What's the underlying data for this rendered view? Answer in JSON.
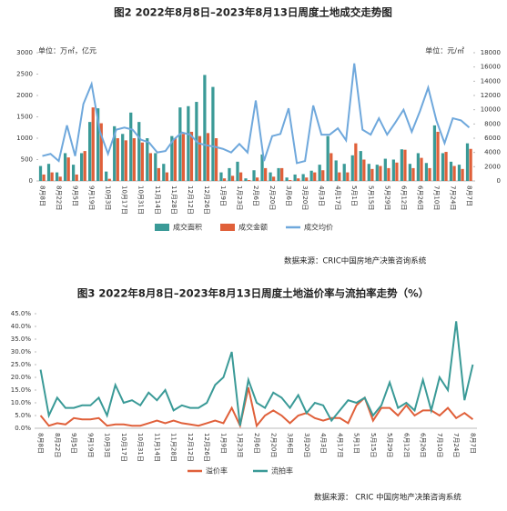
{
  "chart_data": [
    {
      "type": "bar",
      "title": "图2  2022年8月8日–2023年8月13日周度土地成交走势图",
      "y_unit": "单位：万㎡，亿元",
      "y2_unit": "单位：元/㎡",
      "source": "数据来源：CRIC中国房地产决策咨询系统",
      "categories": [
        "8月8日",
        null,
        "8月22日",
        null,
        "9月5日",
        null,
        "9月19日",
        null,
        "10月3日",
        null,
        "10月17日",
        null,
        "10月31日",
        null,
        "11月14日",
        null,
        "11月28日",
        null,
        "12月12日",
        null,
        "12月26日",
        null,
        "1月9日",
        null,
        "1月23日",
        null,
        "2月6日",
        null,
        "2月20日",
        null,
        "3月6日",
        null,
        "3月20日",
        null,
        "4月3日",
        null,
        "4月17日",
        null,
        "5月1日",
        null,
        "5月15日",
        null,
        "5月29日",
        null,
        "6月12日",
        null,
        "6月26日",
        null,
        "7月10日",
        null,
        "7月24日",
        null,
        "8月7日"
      ],
      "series": [
        {
          "name": "成交面积",
          "color": "#3a9a97",
          "values": [
            350,
            400,
            200,
            650,
            380,
            650,
            1380,
            1700,
            220,
            1280,
            1100,
            1600,
            1380,
            1000,
            650,
            400,
            1050,
            1720,
            1750,
            1850,
            2480,
            2200,
            200,
            300,
            450,
            60,
            250,
            620,
            200,
            300,
            80,
            150,
            160,
            240,
            380,
            1050,
            480,
            400,
            600,
            700,
            400,
            380,
            520,
            500,
            740,
            400,
            650,
            420,
            1300,
            650,
            450,
            380,
            880
          ]
        },
        {
          "name": "成交金额",
          "color": "#e0603a",
          "values": [
            150,
            200,
            100,
            550,
            150,
            700,
            1720,
            1350,
            50,
            1000,
            950,
            1000,
            900,
            650,
            300,
            200,
            1000,
            1100,
            1150,
            1050,
            1120,
            1000,
            60,
            120,
            200,
            20,
            80,
            300,
            100,
            300,
            20,
            60,
            80,
            200,
            250,
            650,
            200,
            200,
            880,
            500,
            280,
            350,
            300,
            430,
            730,
            300,
            540,
            300,
            1150,
            680,
            350,
            280,
            750
          ]
        },
        {
          "name": "成交均价",
          "color": "#6fa8dc",
          "type": "line",
          "axis": "y2",
          "values": [
            3500,
            3800,
            2800,
            7800,
            3500,
            10800,
            13600,
            7000,
            3800,
            7200,
            7500,
            7200,
            5800,
            5400,
            4000,
            4200,
            5800,
            6800,
            6500,
            5300,
            5000,
            4800,
            4500,
            4000,
            5200,
            4000,
            11300,
            2800,
            6300,
            6600,
            10200,
            2500,
            2800,
            10600,
            6500,
            6500,
            7400,
            5700,
            16500,
            7200,
            6500,
            8800,
            6500,
            8200,
            10000,
            6900,
            9800,
            13100,
            8500,
            5300,
            8800,
            8500,
            7500
          ]
        }
      ],
      "ylim": [
        0,
        3000
      ],
      "yticks": [
        0,
        500,
        1000,
        1500,
        2000,
        2500,
        3000
      ],
      "y2lim": [
        0,
        18000
      ],
      "y2ticks": [
        0,
        2000,
        4000,
        6000,
        8000,
        10000,
        12000,
        14000,
        16000,
        18000
      ],
      "grid": false
    },
    {
      "type": "line",
      "title": "图3  2022年8月8日–2023年8月13日周度土地溢价率与流拍率走势（%）",
      "source": "数据来源：  CRIC 中国房地产决策咨询系统",
      "categories": [
        "8月8日",
        null,
        "8月22日",
        null,
        "9月5日",
        null,
        "9月19日",
        null,
        "10月3日",
        null,
        "10月17日",
        null,
        "10月31日",
        null,
        "11月14日",
        null,
        "11月28日",
        null,
        "12月12日",
        null,
        "12月26日",
        null,
        "1月9日",
        null,
        "1月23日",
        null,
        "2月6日",
        null,
        "2月20日",
        null,
        "3月6日",
        null,
        "3月20日",
        null,
        "4月3日",
        null,
        "4月17日",
        null,
        "5月1日",
        null,
        "5月15日",
        null,
        "5月29日",
        null,
        "6月12日",
        null,
        "6月26日",
        null,
        "7月10日",
        null,
        "7月24日",
        null,
        "8月7日"
      ],
      "series": [
        {
          "name": "溢价率",
          "color": "#e0603a",
          "values": [
            5,
            1,
            2,
            1.5,
            4,
            3.5,
            3.5,
            4,
            1,
            1.5,
            1.5,
            1,
            1,
            2,
            3,
            2,
            3,
            2,
            1.5,
            1,
            2,
            3,
            2,
            8,
            1,
            16,
            1,
            5,
            7,
            5,
            2,
            5,
            6,
            4,
            3,
            4,
            4,
            2,
            9,
            12,
            3,
            8,
            8,
            5,
            9,
            5,
            7,
            7,
            5,
            8,
            4,
            6,
            3.5
          ]
        },
        {
          "name": "流拍率",
          "color": "#3a9a97",
          "values": [
            23,
            5,
            12,
            8,
            8,
            9,
            9,
            12,
            5,
            17,
            10,
            11,
            9,
            14,
            11,
            15,
            7,
            9,
            8,
            8,
            10,
            17,
            20,
            30,
            1,
            19,
            10,
            8,
            14,
            12,
            8,
            13,
            6,
            10,
            9,
            3,
            7,
            11,
            10,
            12,
            5,
            9,
            18,
            8,
            10,
            7,
            19,
            7,
            20,
            15,
            42,
            11,
            25
          ]
        }
      ],
      "ylim": [
        0,
        45
      ],
      "yticks": [
        {
          "value": 0,
          "label": "0.0%"
        },
        {
          "value": 5,
          "label": "5.0%"
        },
        {
          "value": 10,
          "label": "10.0%"
        },
        {
          "value": 15,
          "label": "15.0%"
        },
        {
          "value": 20,
          "label": "20.0%"
        },
        {
          "value": 25,
          "label": "25.0%"
        },
        {
          "value": 30,
          "label": "30.0%"
        },
        {
          "value": 35,
          "label": "35.0%"
        },
        {
          "value": 40,
          "label": "40.0%"
        },
        {
          "value": 45,
          "label": "45.0%"
        }
      ],
      "grid": false
    }
  ]
}
